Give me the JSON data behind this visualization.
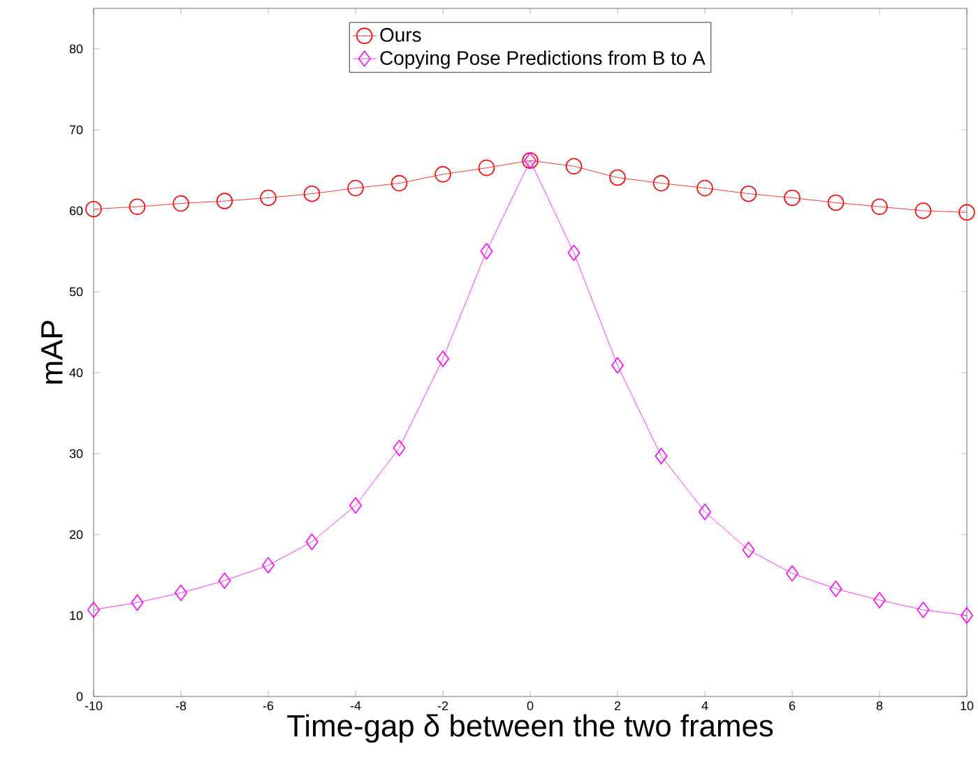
{
  "chart_data": {
    "type": "line",
    "xlabel": "Time-gap δ between the two frames",
    "ylabel": "mAP",
    "x": [
      -10,
      -9,
      -8,
      -7,
      -6,
      -5,
      -4,
      -3,
      -2,
      -1,
      0,
      1,
      2,
      3,
      4,
      5,
      6,
      7,
      8,
      9,
      10
    ],
    "series": [
      {
        "name": "Ours",
        "color": "#ff0000",
        "marker": "circle",
        "values": [
          60.2,
          60.5,
          60.9,
          61.2,
          61.6,
          62.1,
          62.8,
          63.4,
          64.5,
          65.3,
          66.2,
          65.5,
          64.1,
          63.4,
          62.8,
          62.1,
          61.6,
          61.0,
          60.5,
          60.0,
          59.8
        ]
      },
      {
        "name": "Copying Pose Predictions from B to A",
        "color": "#ff00ff",
        "marker": "diamond",
        "values": [
          10.7,
          11.6,
          12.8,
          14.3,
          16.2,
          19.1,
          23.6,
          30.7,
          41.7,
          55.0,
          66.2,
          54.8,
          40.9,
          29.7,
          22.8,
          18.1,
          15.2,
          13.3,
          11.9,
          10.7,
          10.0
        ]
      }
    ],
    "xlim": [
      -10,
      10
    ],
    "xticks": [
      -10,
      -8,
      -6,
      -4,
      -2,
      0,
      2,
      4,
      6,
      8,
      10
    ],
    "ylim": [
      0,
      85
    ],
    "yticks": [
      0,
      10,
      20,
      30,
      40,
      50,
      60,
      70,
      80
    ],
    "legend": "top",
    "grid": false
  }
}
